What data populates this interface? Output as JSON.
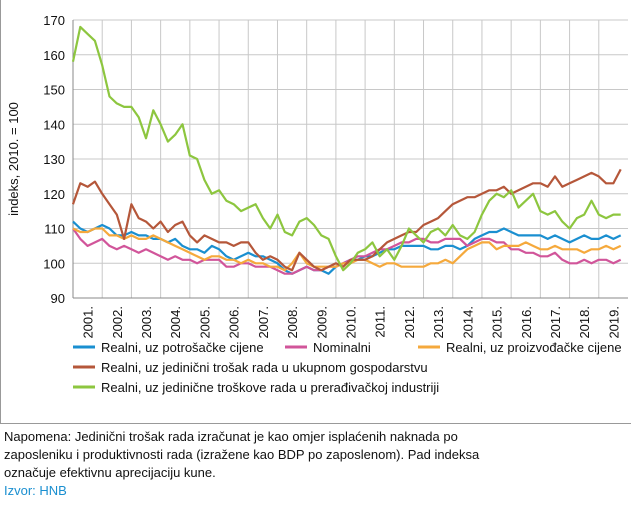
{
  "chart_data": {
    "type": "line",
    "ylabel": "indeks, 2010. = 100",
    "x": [
      2001,
      2001.25,
      2001.5,
      2001.75,
      2002,
      2002.25,
      2002.5,
      2002.75,
      2003,
      2003.25,
      2003.5,
      2003.75,
      2004,
      2004.25,
      2004.5,
      2004.75,
      2005,
      2005.25,
      2005.5,
      2005.75,
      2006,
      2006.25,
      2006.5,
      2006.75,
      2007,
      2007.25,
      2007.5,
      2007.75,
      2008,
      2008.25,
      2008.5,
      2008.75,
      2009,
      2009.25,
      2009.5,
      2009.75,
      2010,
      2010.25,
      2010.5,
      2010.75,
      2011,
      2011.25,
      2011.5,
      2011.75,
      2012,
      2012.25,
      2012.5,
      2012.75,
      2013,
      2013.25,
      2013.5,
      2013.75,
      2014,
      2014.25,
      2014.5,
      2014.75,
      2015,
      2015.25,
      2015.5,
      2015.75,
      2016,
      2016.25,
      2016.5,
      2016.75,
      2017,
      2017.25,
      2017.5,
      2017.75,
      2018,
      2018.25,
      2018.5,
      2018.75,
      2019,
      2019.25,
      2019.5,
      2019.75
    ],
    "xlim": [
      2001,
      2020
    ],
    "xticks": [
      {
        "value": 2001,
        "label": "2001."
      },
      {
        "value": 2002,
        "label": "2002."
      },
      {
        "value": 2003,
        "label": "2003."
      },
      {
        "value": 2004,
        "label": "2004."
      },
      {
        "value": 2005,
        "label": "2005."
      },
      {
        "value": 2006,
        "label": "2006."
      },
      {
        "value": 2007,
        "label": "2007."
      },
      {
        "value": 2008,
        "label": "2008."
      },
      {
        "value": 2009,
        "label": "2009."
      },
      {
        "value": 2010,
        "label": "2010."
      },
      {
        "value": 2011,
        "label": "2011."
      },
      {
        "value": 2012,
        "label": "2012."
      },
      {
        "value": 2013,
        "label": "2013."
      },
      {
        "value": 2014,
        "label": "2014."
      },
      {
        "value": 2015,
        "label": "2015."
      },
      {
        "value": 2016,
        "label": "2016."
      },
      {
        "value": 2017,
        "label": "2017."
      },
      {
        "value": 2018,
        "label": "2018."
      },
      {
        "value": 2019,
        "label": "2019."
      }
    ],
    "ylim": [
      90,
      170
    ],
    "yticks": [
      90,
      100,
      110,
      120,
      130,
      140,
      150,
      160,
      170
    ],
    "grid": true,
    "series": [
      {
        "name": "Realni, uz potrošačke cijene",
        "color": "#1a8fd0",
        "values": [
          112,
          110,
          109,
          110,
          111,
          110,
          108,
          108,
          109,
          108,
          108,
          107,
          107,
          106,
          107,
          105,
          104,
          104,
          103,
          105,
          104,
          102,
          101,
          102,
          103,
          102,
          102,
          101,
          100,
          98,
          97,
          98,
          99,
          98,
          98,
          97,
          99,
          100,
          101,
          101,
          102,
          102,
          103,
          104,
          104,
          105,
          105,
          105,
          105,
          104,
          104,
          105,
          105,
          104,
          105,
          107,
          108,
          109,
          109,
          110,
          109,
          108,
          108,
          108,
          108,
          107,
          108,
          107,
          106,
          107,
          108,
          107,
          107,
          108,
          107,
          108
        ]
      },
      {
        "name": "Nominalni",
        "color": "#d1559a",
        "values": [
          110,
          107,
          105,
          106,
          107,
          105,
          104,
          105,
          104,
          103,
          104,
          103,
          102,
          101,
          102,
          101,
          101,
          100,
          101,
          101,
          101,
          99,
          99,
          100,
          100,
          99,
          99,
          99,
          98,
          97,
          97,
          98,
          99,
          98,
          98,
          99,
          99,
          100,
          101,
          102,
          102,
          103,
          104,
          104,
          105,
          106,
          106,
          107,
          107,
          106,
          106,
          107,
          107,
          107,
          105,
          106,
          107,
          107,
          106,
          106,
          104,
          104,
          103,
          103,
          102,
          102,
          103,
          101,
          100,
          100,
          101,
          100,
          101,
          101,
          100,
          101
        ]
      },
      {
        "name": "Realni, uz proizvođačke cijene",
        "color": "#f5a93c",
        "values": [
          110,
          109,
          109,
          110,
          110,
          108,
          108,
          107,
          108,
          107,
          107,
          108,
          107,
          106,
          105,
          104,
          103,
          102,
          101,
          102,
          102,
          101,
          101,
          100,
          101,
          100,
          100,
          99,
          99,
          98,
          100,
          103,
          100,
          99,
          99,
          99,
          99,
          100,
          100,
          101,
          101,
          100,
          99,
          100,
          100,
          99,
          99,
          99,
          99,
          100,
          100,
          101,
          100,
          102,
          104,
          105,
          106,
          106,
          104,
          105,
          105,
          105,
          106,
          105,
          104,
          104,
          105,
          104,
          104,
          104,
          103,
          104,
          104,
          105,
          104,
          105
        ]
      },
      {
        "name": "Realni, uz jedinični trošak rada u ukupnom gospodarstvu",
        "color": "#b5573a",
        "values": [
          117,
          123,
          122,
          123.5,
          120,
          117,
          114,
          107,
          117,
          113,
          112,
          110,
          112,
          109,
          111,
          112,
          108,
          106,
          108,
          107,
          106,
          106,
          105,
          106,
          106,
          103,
          101,
          102,
          101,
          99,
          98,
          103,
          101,
          99,
          98,
          99,
          100,
          99,
          101,
          101,
          101,
          102,
          104,
          106,
          107,
          108,
          109,
          109,
          111,
          112,
          113,
          115,
          117,
          118,
          119,
          119,
          120,
          121,
          121,
          122,
          120,
          121,
          122,
          123,
          123,
          122,
          125,
          122,
          123,
          124,
          125,
          126,
          125,
          123,
          123,
          127
        ]
      },
      {
        "name": "Realni, uz jedinične troškove rada u prerađivačkoj industriji",
        "color": "#8dc63f",
        "values": [
          158,
          168,
          166,
          164,
          157,
          148,
          146,
          145,
          145,
          142,
          136,
          144,
          140,
          135,
          137,
          140,
          131,
          130,
          124,
          120,
          121,
          118,
          117,
          115,
          116,
          117,
          113,
          110,
          114,
          109,
          108,
          112,
          113,
          111,
          108,
          107,
          102,
          98,
          100,
          103,
          104,
          106,
          102,
          104,
          101,
          105,
          110,
          108,
          106,
          109,
          110,
          108,
          111,
          108,
          107,
          109,
          114,
          118,
          120,
          119,
          121,
          116,
          118,
          120,
          115,
          114,
          115,
          112,
          110,
          113,
          114,
          118,
          114,
          113,
          114,
          114
        ]
      }
    ],
    "note": [
      "Napomena: Jedinični trošak rada izračunat je kao omjer isplaćenih naknada po",
      "zaposleniku i produktivnosti rada (izražene kao BDP po zaposlenom). Pad indeksa",
      "označuje efektivnu aprecijaciju kune."
    ],
    "source": "Izvor: HNB"
  }
}
